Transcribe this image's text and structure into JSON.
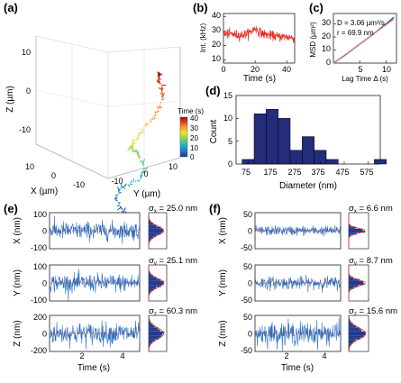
{
  "panels": {
    "a": {
      "label": "(a)",
      "type": "3d-trajectory",
      "xlabel": "X (µm)",
      "ylabel": "Y (µm)",
      "zlabel": "Z (µm)",
      "x_ticks": [
        "10",
        "0",
        "-10"
      ],
      "y_ticks": [
        "-10",
        "0",
        "10"
      ],
      "z_ticks": [
        "10",
        "0",
        "-10"
      ],
      "colorbar_title": "Time (s)",
      "colorbar_ticks": [
        "40",
        "30",
        "20",
        "10",
        "0"
      ],
      "colorbar_range": [
        0,
        40
      ],
      "colormap": [
        "#2b2f8f",
        "#1f78c8",
        "#20b3c2",
        "#7fd05b",
        "#f0e22e",
        "#f59a23",
        "#e03b1f",
        "#8c0f0f"
      ],
      "waypoints_um": [
        [
          -1,
          6,
          -20
        ],
        [
          1,
          5,
          -17
        ],
        [
          2,
          4,
          -14
        ],
        [
          1,
          5,
          -11
        ],
        [
          -1,
          8,
          -9
        ],
        [
          0,
          10,
          -7
        ],
        [
          2,
          10,
          -4
        ],
        [
          2,
          8,
          -2
        ],
        [
          0,
          7,
          0
        ],
        [
          -1,
          9,
          4
        ],
        [
          -2,
          11,
          7
        ],
        [
          -2,
          13,
          11
        ],
        [
          -1,
          14,
          13
        ],
        [
          0,
          14,
          15
        ],
        [
          -1,
          13,
          17
        ]
      ]
    },
    "b": {
      "label": "(b)",
      "xlabel": "Time (s)",
      "ylabel": "Int. (kHz)",
      "x_ticks": [
        "0",
        "20",
        "40"
      ],
      "y_ticks": [
        "40",
        "30",
        "20",
        "10"
      ],
      "xlim": [
        0,
        45
      ],
      "ylim": [
        8,
        42
      ],
      "line_color": "#e8211b"
    },
    "c": {
      "label": "(c)",
      "xlabel": "Lag Time Δ (s)",
      "ylabel": "MSD (µm²)",
      "x_ticks": [
        "5",
        "10"
      ],
      "y_ticks": [
        "0",
        "10",
        "20",
        "30"
      ],
      "annot_D": "D = 3.06 µm²/s",
      "annot_r": "r = 69.9 nm",
      "xlim": [
        0,
        12
      ],
      "ylim": [
        0,
        38
      ],
      "data_color": "#2c5fb8",
      "fit_color": "#e88e7a"
    },
    "d": {
      "label": "(d)",
      "xlabel": "Diameter (nm)",
      "ylabel": "Count",
      "x_ticks": [
        "75",
        "175",
        "275",
        "375",
        "475",
        "575"
      ],
      "y_ticks": [
        "0",
        "5",
        "10",
        "15"
      ],
      "bar_color": "#232d7a"
    },
    "e": {
      "label": "(e)",
      "xlabel": "Time (s)",
      "x_ticks": [
        "2",
        "4"
      ],
      "rows": [
        {
          "ylabel": "X (nm)",
          "y_ticks": [
            "100",
            "0",
            "-100"
          ],
          "ylim": [
            -100,
            100
          ],
          "sigma_sym": "σ",
          "sigma_sub": "x",
          "sigma_text": "= 25.0 nm",
          "sigma_nm": 25.0
        },
        {
          "ylabel": "Y (nm)",
          "y_ticks": [
            "100",
            "0",
            "-100"
          ],
          "ylim": [
            -100,
            100
          ],
          "sigma_sym": "σ",
          "sigma_sub": "y",
          "sigma_text": "= 25.1 nm",
          "sigma_nm": 25.1
        },
        {
          "ylabel": "Z (nm)",
          "y_ticks": [
            "200",
            "0",
            "-200"
          ],
          "ylim": [
            -200,
            200
          ],
          "sigma_sym": "σ",
          "sigma_sub": "z",
          "sigma_text": "= 60.3 nm",
          "sigma_nm": 60.3
        }
      ]
    },
    "f": {
      "label": "(f)",
      "xlabel": "Time (s)",
      "x_ticks": [
        "2",
        "4"
      ],
      "rows": [
        {
          "ylabel": "X (nm)",
          "y_ticks": [
            "50",
            "0",
            "-50"
          ],
          "ylim": [
            -50,
            50
          ],
          "sigma_sym": "σ",
          "sigma_sub": "x",
          "sigma_text": "= 6.6 nm",
          "sigma_nm": 6.6
        },
        {
          "ylabel": "Y (nm)",
          "y_ticks": [
            "50",
            "0",
            "-50"
          ],
          "ylim": [
            -50,
            50
          ],
          "sigma_sym": "σ",
          "sigma_sub": "y",
          "sigma_text": "= 8.7 nm",
          "sigma_nm": 8.7
        },
        {
          "ylabel": "Z (nm)",
          "y_ticks": [
            "50",
            "0",
            "-50"
          ],
          "ylim": [
            -50,
            50
          ],
          "sigma_sym": "σ",
          "sigma_sub": "z",
          "sigma_text": "= 15.6 nm",
          "sigma_nm": 15.6
        }
      ]
    }
  },
  "chart_data": [
    {
      "type": "line",
      "panel": "b",
      "xlabel": "Time (s)",
      "ylabel": "Int. (kHz)",
      "xlim": [
        0,
        45
      ],
      "ylim": [
        8,
        42
      ],
      "x": [
        0,
        5,
        10,
        15,
        18,
        20,
        22,
        25,
        30,
        35,
        40,
        45
      ],
      "y": [
        28,
        28,
        27,
        28,
        30,
        32,
        30,
        28,
        27,
        26,
        26,
        25
      ]
    },
    {
      "type": "line",
      "panel": "c",
      "xlabel": "Lag Time Δ (s)",
      "ylabel": "MSD (µm²)",
      "xlim": [
        0,
        12
      ],
      "ylim": [
        0,
        38
      ],
      "series": [
        {
          "x": [
            0,
            2,
            4,
            6,
            8,
            10,
            11.5
          ],
          "y": [
            0,
            5.5,
            11.5,
            17.5,
            23.5,
            30,
            35
          ]
        },
        {
          "x": [
            0,
            11.5
          ],
          "y": [
            0,
            33.6
          ]
        }
      ]
    },
    {
      "type": "bar",
      "panel": "d",
      "xlabel": "Diameter (nm)",
      "ylabel": "Count",
      "ylim": [
        0,
        15
      ],
      "bin_start": 50,
      "bin_width": 50,
      "values": [
        1,
        11,
        12,
        10,
        3,
        6,
        3,
        1,
        0,
        0,
        0,
        1
      ]
    },
    {
      "type": "line",
      "panel": "e",
      "xlabel": "Time (s)",
      "series": [
        {
          "axis": "X (nm)",
          "sigma_nm": 25.0,
          "ylim": [
            -100,
            100
          ]
        },
        {
          "axis": "Y (nm)",
          "sigma_nm": 25.1,
          "ylim": [
            -100,
            100
          ]
        },
        {
          "axis": "Z (nm)",
          "sigma_nm": 60.3,
          "ylim": [
            -200,
            200
          ]
        }
      ]
    },
    {
      "type": "line",
      "panel": "f",
      "xlabel": "Time (s)",
      "series": [
        {
          "axis": "X (nm)",
          "sigma_nm": 6.6,
          "ylim": [
            -50,
            50
          ]
        },
        {
          "axis": "Y (nm)",
          "sigma_nm": 8.7,
          "ylim": [
            -50,
            50
          ]
        },
        {
          "axis": "Z (nm)",
          "sigma_nm": 15.6,
          "ylim": [
            -50,
            50
          ]
        }
      ]
    }
  ]
}
